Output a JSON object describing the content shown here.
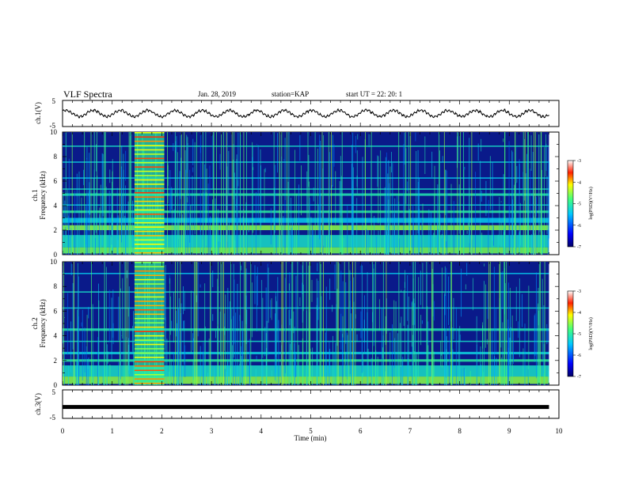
{
  "header": {
    "title": "VLF Spectra",
    "date": "Jan. 28, 2019",
    "station": "station=KAP",
    "start": "start  UT =  22: 20: 1"
  },
  "colors": {
    "spectrogram_low": "#0a0a5a",
    "spectrogram_mid": "#00c8e0",
    "spectrogram_high": "#ff2010",
    "trace": "#000000"
  },
  "chart_data": [
    {
      "type": "line",
      "panel": "ch1-waveform",
      "ylabel": "ch.1(V)",
      "ylim": [
        -5,
        5
      ],
      "yticks": [
        "5",
        "-5"
      ],
      "xlim": [
        0,
        10
      ],
      "description_series": "oscillating voltage trace, roughly +/-1.5 V, ~0.55 min period",
      "series": [
        {
          "name": "ch.1",
          "x": [
            0,
            0.5,
            1,
            1.5,
            2,
            2.5,
            3,
            3.5,
            4,
            4.5,
            5,
            5.5,
            6,
            6.5,
            7,
            7.5,
            8,
            8.5,
            9,
            9.5,
            9.8
          ],
          "values": [
            0.5,
            -1,
            1.2,
            -1.2,
            1,
            -0.8,
            1.2,
            -1,
            0.8,
            -1.2,
            1,
            -1,
            1.2,
            -0.8,
            1,
            -1.2,
            0.9,
            -1,
            1.2,
            -0.6,
            0.3
          ]
        }
      ]
    },
    {
      "type": "heatmap",
      "panel": "ch1-spectrogram",
      "ylabel": "ch.1",
      "ylabel2": "Frequency (kHz)",
      "ylim": [
        0,
        10
      ],
      "yticks": [
        "0",
        "2",
        "4",
        "6",
        "8",
        "10"
      ],
      "xlim": [
        0,
        10
      ],
      "data_end_min": 9.8,
      "colorbar": {
        "label": "log(PSD)(V²/Hz)",
        "range": [
          -7,
          -3
        ],
        "ticks": [
          "-3",
          "-4",
          "-5",
          "-6",
          "-7"
        ]
      }
    },
    {
      "type": "heatmap",
      "panel": "ch2-spectrogram",
      "ylabel": "ch.2",
      "ylabel2": "Frequency (kHz)",
      "ylim": [
        0,
        10
      ],
      "yticks": [
        "0",
        "2",
        "4",
        "6",
        "8",
        "10"
      ],
      "xlim": [
        0,
        10
      ],
      "data_end_min": 9.8,
      "colorbar": {
        "label": "log(PSD)(V²/Hz)",
        "range": [
          -7,
          -3
        ],
        "ticks": [
          "-3",
          "-4",
          "-5",
          "-6",
          "-7"
        ]
      }
    },
    {
      "type": "line",
      "panel": "ch3-waveform",
      "ylabel": "ch.3(V)",
      "ylim": [
        -5,
        5
      ],
      "yticks": [
        "5",
        "-5"
      ],
      "xlim": [
        0,
        10
      ],
      "series": [
        {
          "name": "ch.3",
          "x": [
            0,
            9.8
          ],
          "values": [
            -1,
            -1
          ]
        }
      ]
    }
  ],
  "xaxis": {
    "label": "Time (min)",
    "ticks": [
      "0",
      "1",
      "2",
      "3",
      "4",
      "5",
      "6",
      "7",
      "8",
      "9",
      "10"
    ]
  }
}
